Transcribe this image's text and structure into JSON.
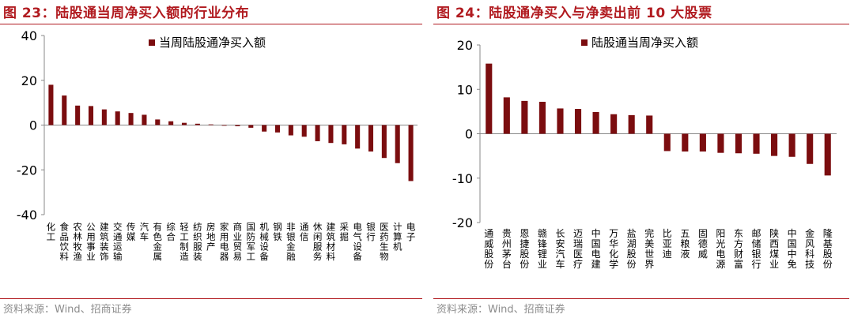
{
  "panels": [
    {
      "title": "图 23：陆股通当周净买入额的行业分布",
      "source": "资料来源：Wind、招商证券"
    },
    {
      "title": "图 24：陆股通净买入与净卖出前 10 大股票",
      "source": "资料来源：Wind、招商证券"
    }
  ],
  "chart_data": [
    {
      "type": "bar",
      "series": [
        {
          "name": "当周陆股通净买入额",
          "color": "#7b0d0f"
        }
      ],
      "categories": [
        "化工",
        "食品饮料",
        "农林牧渔",
        "公用事业",
        "建筑装饰",
        "交通运输",
        "传媒",
        "汽车",
        "有色金属",
        "综合",
        "轻工制造",
        "纺织服装",
        "房地产",
        "家用电器",
        "商业贸易",
        "国防军工",
        "机械设备",
        "钢铁",
        "非银金融",
        "通信",
        "休闲服务",
        "建筑材料",
        "采掘",
        "电气设备",
        "银行",
        "医药生物",
        "计算机",
        "电子"
      ],
      "values": [
        18.0,
        13.2,
        8.7,
        8.5,
        7.0,
        6.1,
        5.4,
        4.6,
        2.5,
        1.7,
        1.0,
        0.6,
        0.3,
        -0.2,
        -0.5,
        -1.2,
        -2.9,
        -3.3,
        -4.6,
        -5.2,
        -7.2,
        -8.0,
        -8.6,
        -10.5,
        -11.8,
        -14.7,
        -17.0,
        -25.0
      ],
      "ylim": [
        -40,
        40
      ],
      "yticks": [
        -40,
        -20,
        0,
        20,
        40
      ],
      "legend_position": "top"
    },
    {
      "type": "bar",
      "series": [
        {
          "name": "陆股通当周净买入额",
          "color": "#7b0d0f"
        }
      ],
      "categories": [
        "通威股份",
        "贵州茅台",
        "恩捷股份",
        "赣锋锂业",
        "长安汽车",
        "迈瑞医疗",
        "中国电建",
        "万华化学",
        "盐湖股份",
        "完美世界",
        "比亚迪",
        "五粮液",
        "固德威",
        "阳光电源",
        "东方财富",
        "邮储银行",
        "陕西煤业",
        "中国中免",
        "金风科技",
        "隆基股份"
      ],
      "values": [
        15.8,
        8.2,
        7.4,
        7.2,
        5.7,
        5.6,
        4.9,
        4.4,
        4.2,
        4.1,
        -3.9,
        -4.0,
        -4.0,
        -4.3,
        -4.4,
        -4.5,
        -5.0,
        -5.2,
        -6.8,
        -9.4
      ],
      "ylim": [
        -20,
        20
      ],
      "yticks": [
        -20,
        -10,
        0,
        10,
        20
      ],
      "legend_position": "top"
    }
  ]
}
